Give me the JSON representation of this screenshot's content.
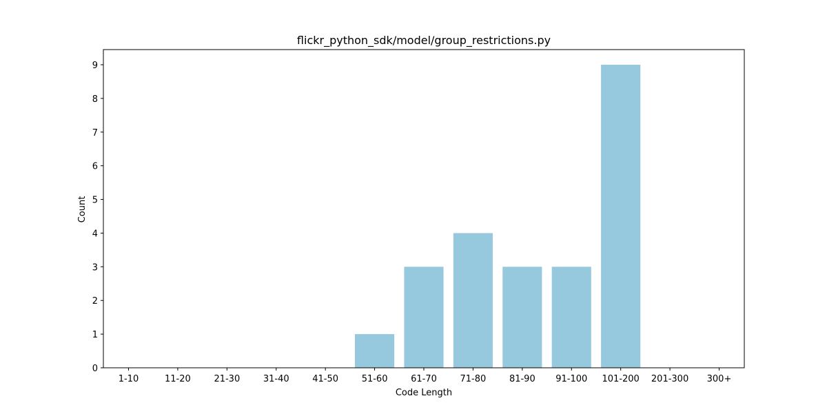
{
  "chart_data": {
    "type": "bar",
    "title": "flickr_python_sdk/model/group_restrictions.py",
    "xlabel": "Code Length",
    "ylabel": "Count",
    "categories": [
      "1-10",
      "11-20",
      "21-30",
      "31-40",
      "41-50",
      "51-60",
      "61-70",
      "71-80",
      "81-90",
      "91-100",
      "101-200",
      "201-300",
      "300+"
    ],
    "values": [
      0,
      0,
      0,
      0,
      0,
      1,
      3,
      4,
      3,
      3,
      9,
      0,
      0
    ],
    "ylim": [
      0,
      9.45
    ],
    "yticks": [
      0,
      1,
      2,
      3,
      4,
      5,
      6,
      7,
      8,
      9
    ],
    "bar_color": "#96c9dd",
    "grid": false,
    "legend": "none"
  }
}
